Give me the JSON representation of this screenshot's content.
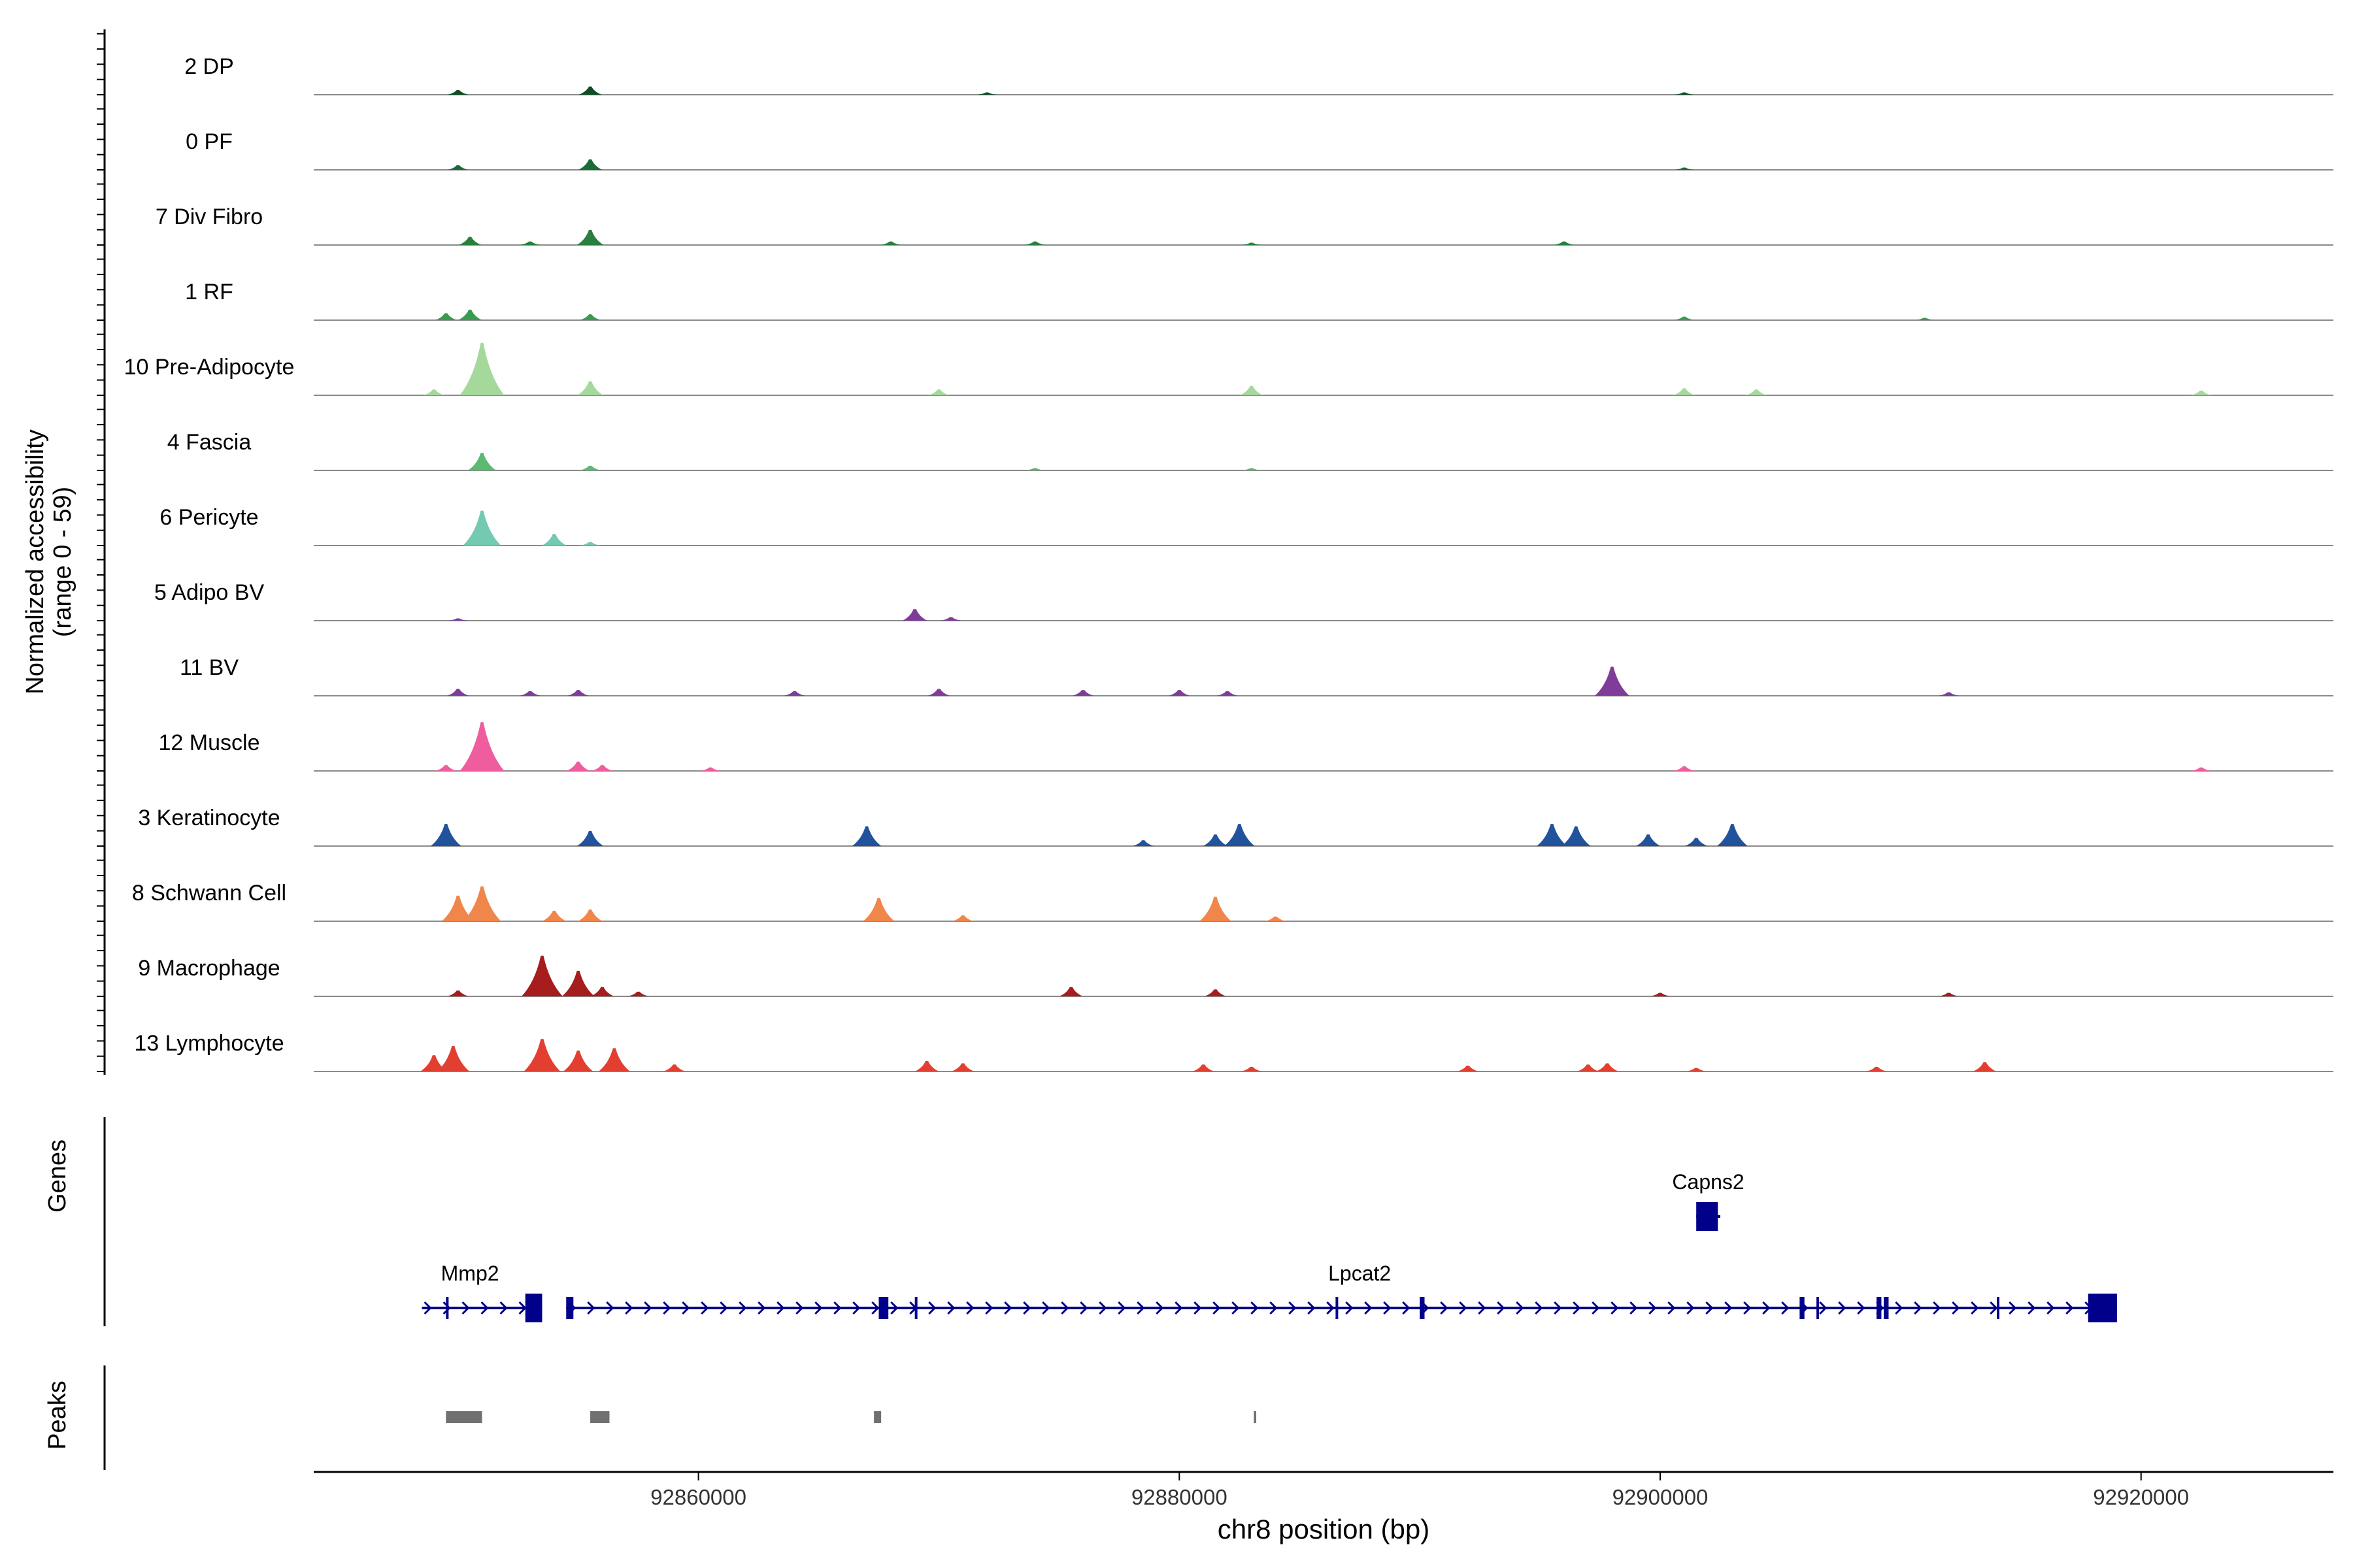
{
  "chart_data": {
    "type": "area",
    "title": "",
    "xlabel": "chr8 position (bp)",
    "ylabel": "Normalized accessibility\n(range 0 - 59)",
    "ylabel_lines": [
      "Normalized accessibility",
      "(range 0 - 59)"
    ],
    "ylim": [
      0,
      59
    ],
    "xlim": [
      92844000,
      92928000
    ],
    "x_ticks": [
      92860000,
      92880000,
      92900000,
      92920000
    ],
    "x_tick_labels": [
      "92860000",
      "92880000",
      "92900000",
      "92920000"
    ],
    "track_labels": {
      "genes": "Genes",
      "peaks": "Peaks"
    },
    "series": [
      {
        "name": "2 DP",
        "color": "#0f4d25",
        "peaks": [
          [
            92850000,
            4
          ],
          [
            92855500,
            7
          ],
          [
            92872000,
            2
          ],
          [
            92901000,
            2
          ]
        ]
      },
      {
        "name": "0 PF",
        "color": "#1a6b35",
        "peaks": [
          [
            92850000,
            4
          ],
          [
            92855500,
            9
          ],
          [
            92901000,
            2
          ]
        ]
      },
      {
        "name": "7 Div Fibro",
        "color": "#2a7f3e",
        "peaks": [
          [
            92850500,
            7
          ],
          [
            92853000,
            3
          ],
          [
            92855500,
            13
          ],
          [
            92868000,
            3
          ],
          [
            92874000,
            3
          ],
          [
            92883000,
            2
          ],
          [
            92896000,
            3
          ]
        ]
      },
      {
        "name": "1 RF",
        "color": "#3a9a50",
        "peaks": [
          [
            92849500,
            6
          ],
          [
            92850500,
            9
          ],
          [
            92855500,
            5
          ],
          [
            92901000,
            3
          ],
          [
            92911000,
            2
          ]
        ]
      },
      {
        "name": "10 Pre-Adipocyte",
        "color": "#a5d99c",
        "peaks": [
          [
            92849000,
            5
          ],
          [
            92851000,
            45
          ],
          [
            92855500,
            12
          ],
          [
            92870000,
            5
          ],
          [
            92883000,
            8
          ],
          [
            92901000,
            6
          ],
          [
            92904000,
            5
          ],
          [
            92922500,
            4
          ]
        ]
      },
      {
        "name": "4 Fascia",
        "color": "#5bb971",
        "peaks": [
          [
            92851000,
            15
          ],
          [
            92855500,
            4
          ],
          [
            92874000,
            2
          ],
          [
            92883000,
            2
          ]
        ]
      },
      {
        "name": "6 Pericyte",
        "color": "#73c9b2",
        "peaks": [
          [
            92851000,
            30
          ],
          [
            92854000,
            10
          ],
          [
            92855500,
            3
          ]
        ]
      },
      {
        "name": "5 Adipo BV",
        "color": "#7d3c98",
        "peaks": [
          [
            92869000,
            10
          ],
          [
            92870500,
            3
          ],
          [
            92850000,
            2
          ]
        ]
      },
      {
        "name": "11 BV",
        "color": "#7f3d99",
        "peaks": [
          [
            92850000,
            6
          ],
          [
            92853000,
            4
          ],
          [
            92855000,
            5
          ],
          [
            92864000,
            4
          ],
          [
            92870000,
            6
          ],
          [
            92876000,
            5
          ],
          [
            92880000,
            5
          ],
          [
            92882000,
            4
          ],
          [
            92898000,
            25
          ],
          [
            92912000,
            3
          ]
        ]
      },
      {
        "name": "12 Muscle",
        "color": "#ee5e9e",
        "peaks": [
          [
            92851000,
            42
          ],
          [
            92849500,
            5
          ],
          [
            92855000,
            8
          ],
          [
            92856000,
            5
          ],
          [
            92860500,
            3
          ],
          [
            92901000,
            4
          ],
          [
            92922500,
            3
          ]
        ]
      },
      {
        "name": "3 Keratinocyte",
        "color": "#21539d",
        "peaks": [
          [
            92849500,
            19
          ],
          [
            92855500,
            13
          ],
          [
            92867000,
            17
          ],
          [
            92878500,
            5
          ],
          [
            92881500,
            10
          ],
          [
            92882500,
            19
          ],
          [
            92895500,
            19
          ],
          [
            92896500,
            17
          ],
          [
            92899500,
            10
          ],
          [
            92903000,
            19
          ],
          [
            92901500,
            7
          ]
        ]
      },
      {
        "name": "8 Schwann Cell",
        "color": "#f0864a",
        "peaks": [
          [
            92850000,
            22
          ],
          [
            92851000,
            30
          ],
          [
            92854000,
            9
          ],
          [
            92855500,
            10
          ],
          [
            92867500,
            20
          ],
          [
            92871000,
            5
          ],
          [
            92881500,
            21
          ],
          [
            92884000,
            4
          ]
        ]
      },
      {
        "name": "9 Macrophage",
        "color": "#a51d1d",
        "peaks": [
          [
            92850000,
            5
          ],
          [
            92853500,
            35
          ],
          [
            92855000,
            22
          ],
          [
            92856000,
            8
          ],
          [
            92857500,
            4
          ],
          [
            92875500,
            8
          ],
          [
            92881500,
            6
          ],
          [
            92900000,
            3
          ],
          [
            92912000,
            3
          ]
        ]
      },
      {
        "name": "13 Lymphocyte",
        "color": "#e23f31",
        "peaks": [
          [
            92849000,
            14
          ],
          [
            92849800,
            22
          ],
          [
            92853500,
            28
          ],
          [
            92855000,
            18
          ],
          [
            92856500,
            20
          ],
          [
            92859000,
            6
          ],
          [
            92869500,
            9
          ],
          [
            92871000,
            7
          ],
          [
            92881000,
            6
          ],
          [
            92883000,
            4
          ],
          [
            92892000,
            5
          ],
          [
            92897000,
            6
          ],
          [
            92897800,
            7
          ],
          [
            92901500,
            3
          ],
          [
            92909000,
            4
          ],
          [
            92913500,
            8
          ]
        ]
      }
    ],
    "genes": [
      {
        "name": "Mmp2",
        "start": 92848500,
        "end": 92853500,
        "strand": "+",
        "exons": [
          [
            92849500,
            92849600
          ],
          [
            92852800,
            92853500
          ]
        ]
      },
      {
        "name": "Lpcat2",
        "start": 92854500,
        "end": 92919000,
        "strand": "+",
        "exons": [
          [
            92854500,
            92854800
          ],
          [
            92867500,
            92867900
          ],
          [
            92869000,
            92869100
          ],
          [
            92886500,
            92886600
          ],
          [
            92890000,
            92890200
          ],
          [
            92905800,
            92906000
          ],
          [
            92906500,
            92906600
          ],
          [
            92909000,
            92909200
          ],
          [
            92909300,
            92909500
          ],
          [
            92914000,
            92914100
          ],
          [
            92917800,
            92919000
          ]
        ]
      },
      {
        "name": "Capns2",
        "start": 92901500,
        "end": 92902500,
        "strand": "+",
        "exons": [
          [
            92901500,
            92902400
          ]
        ]
      }
    ],
    "peaks": [
      [
        92849500,
        92851000
      ],
      [
        92855500,
        92856300
      ],
      [
        92867300,
        92867600
      ],
      [
        92883100,
        92883200
      ]
    ]
  }
}
